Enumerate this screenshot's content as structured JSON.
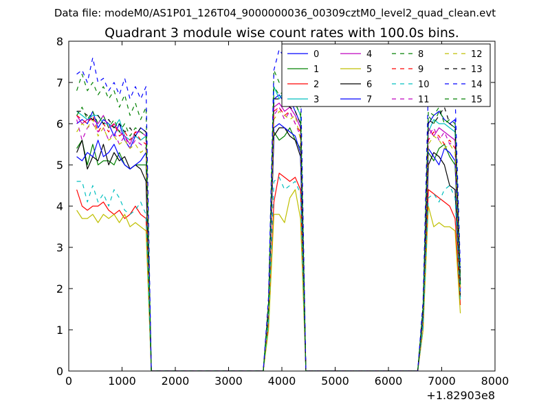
{
  "chart_data": {
    "type": "line",
    "suptitle": "Data file: modeM0/AS1P01_126T04_9000000036_00309cztM0_level2_quad_clean.evt",
    "title": "Quadrant 3 module wise count rates with 100.0s bins.",
    "xlabel": "",
    "ylabel": "",
    "x_offset_label": "+1.82903e8",
    "xlim": [
      0,
      8000
    ],
    "ylim": [
      0,
      8
    ],
    "xticks": [
      0,
      1000,
      2000,
      3000,
      4000,
      5000,
      6000,
      7000,
      8000
    ],
    "yticks": [
      0,
      1,
      2,
      3,
      4,
      5,
      6,
      7,
      8
    ],
    "grid": false,
    "legend_position": "top-right",
    "x": [
      150,
      250,
      350,
      450,
      550,
      650,
      750,
      850,
      950,
      1050,
      1150,
      1250,
      1350,
      1450,
      1550,
      1650,
      1750,
      1850,
      1950,
      2050,
      2150,
      2250,
      2350,
      2450,
      2550,
      2650,
      2750,
      2850,
      2950,
      3050,
      3150,
      3250,
      3350,
      3450,
      3550,
      3650,
      3750,
      3850,
      3950,
      4050,
      4150,
      4250,
      4350,
      4450,
      4550,
      4650,
      4750,
      4850,
      4950,
      5050,
      5150,
      5250,
      5350,
      5450,
      5550,
      5650,
      5750,
      5850,
      5950,
      6050,
      6150,
      6250,
      6350,
      6450,
      6550,
      6650,
      6750,
      6850,
      6950,
      7050,
      7150,
      7250,
      7350
    ],
    "series": [
      {
        "name": "0",
        "color": "#0000ff",
        "style": "solid",
        "values": [
          6.0,
          6.1,
          6.0,
          6.3,
          5.9,
          6.1,
          6.0,
          5.7,
          6.0,
          5.6,
          5.4,
          5.7,
          5.9,
          5.8,
          0,
          0,
          0,
          0,
          0,
          0,
          0,
          0,
          0,
          0,
          0,
          0,
          0,
          0,
          0,
          0,
          0,
          0,
          0,
          0,
          0,
          0,
          1.5,
          6.6,
          6.7,
          6.5,
          6.6,
          6.3,
          6.0,
          0,
          0,
          0,
          0,
          0,
          0,
          0,
          0,
          0,
          0,
          0,
          0,
          0,
          0,
          0,
          0,
          0,
          0,
          0,
          0,
          0,
          0,
          1.5,
          6.0,
          6.2,
          6.3,
          6.1,
          6.0,
          6.1,
          2.2
        ]
      },
      {
        "name": "1",
        "color": "#008000",
        "style": "solid",
        "values": [
          5.4,
          5.6,
          5.0,
          5.5,
          5.0,
          5.1,
          5.1,
          5.0,
          5.3,
          5.0,
          4.9,
          5.0,
          5.0,
          5.0,
          0,
          0,
          0,
          0,
          0,
          0,
          0,
          0,
          0,
          0,
          0,
          0,
          0,
          0,
          0,
          0,
          0,
          0,
          0,
          0,
          0,
          0,
          1.3,
          5.8,
          5.6,
          5.7,
          5.9,
          5.6,
          5.4,
          0,
          0,
          0,
          0,
          0,
          0,
          0,
          0,
          0,
          0,
          0,
          0,
          0,
          0,
          0,
          0,
          0,
          0,
          0,
          0,
          0,
          0,
          1.3,
          5.3,
          5.1,
          5.4,
          5.5,
          5.2,
          5.0,
          2.0
        ]
      },
      {
        "name": "2",
        "color": "#ff0000",
        "style": "solid",
        "values": [
          4.4,
          4.0,
          3.9,
          4.0,
          4.0,
          4.1,
          3.9,
          3.8,
          3.9,
          3.7,
          3.8,
          4.0,
          3.8,
          3.7,
          0,
          0,
          0,
          0,
          0,
          0,
          0,
          0,
          0,
          0,
          0,
          0,
          0,
          0,
          0,
          0,
          0,
          0,
          0,
          0,
          0,
          0,
          1.1,
          4.1,
          4.8,
          4.7,
          4.6,
          4.7,
          4.4,
          0,
          0,
          0,
          0,
          0,
          0,
          0,
          0,
          0,
          0,
          0,
          0,
          0,
          0,
          0,
          0,
          0,
          0,
          0,
          0,
          0,
          0,
          1.0,
          4.4,
          4.3,
          4.2,
          4.1,
          4.0,
          3.7,
          1.6
        ]
      },
      {
        "name": "3",
        "color": "#00bfbf",
        "style": "solid",
        "values": [
          6.3,
          6.2,
          6.1,
          6.2,
          6.2,
          6.0,
          6.0,
          5.9,
          6.1,
          5.7,
          5.6,
          5.7,
          5.6,
          5.7,
          0,
          0,
          0,
          0,
          0,
          0,
          0,
          0,
          0,
          0,
          0,
          0,
          0,
          0,
          0,
          0,
          0,
          0,
          0,
          0,
          0,
          0,
          1.6,
          6.9,
          6.6,
          6.8,
          6.6,
          6.5,
          6.2,
          0,
          0,
          0,
          0,
          0,
          0,
          0,
          0,
          0,
          0,
          0,
          0,
          0,
          0,
          0,
          0,
          0,
          0,
          0,
          0,
          0,
          0,
          1.5,
          5.8,
          6.1,
          6.0,
          6.0,
          5.9,
          5.8,
          2.1
        ]
      },
      {
        "name": "4",
        "color": "#bf00bf",
        "style": "solid",
        "values": [
          6.2,
          6.0,
          6.1,
          6.1,
          6.0,
          6.2,
          5.9,
          6.0,
          5.8,
          5.7,
          5.5,
          5.8,
          5.8,
          5.7,
          0,
          0,
          0,
          0,
          0,
          0,
          0,
          0,
          0,
          0,
          0,
          0,
          0,
          0,
          0,
          0,
          0,
          0,
          0,
          0,
          0,
          0,
          1.5,
          6.4,
          6.5,
          6.3,
          6.4,
          6.2,
          5.9,
          0,
          0,
          0,
          0,
          0,
          0,
          0,
          0,
          0,
          0,
          0,
          0,
          0,
          0,
          0,
          0,
          0,
          0,
          0,
          0,
          0,
          0,
          1.4,
          5.9,
          5.7,
          5.9,
          5.8,
          5.7,
          5.6,
          2.0
        ]
      },
      {
        "name": "5",
        "color": "#bfbf00",
        "style": "solid",
        "values": [
          3.9,
          3.7,
          3.7,
          3.8,
          3.6,
          3.8,
          3.7,
          3.8,
          3.6,
          3.8,
          3.5,
          3.6,
          3.5,
          3.4,
          0,
          0,
          0,
          0,
          0,
          0,
          0,
          0,
          0,
          0,
          0,
          0,
          0,
          0,
          0,
          0,
          0,
          0,
          0,
          0,
          0,
          0,
          1.0,
          3.8,
          3.8,
          3.6,
          4.2,
          4.4,
          3.7,
          0,
          0,
          0,
          0,
          0,
          0,
          0,
          0,
          0,
          0,
          0,
          0,
          0,
          0,
          0,
          0,
          0,
          0,
          0,
          0,
          0,
          0,
          1.0,
          4.0,
          3.5,
          3.6,
          3.5,
          3.5,
          3.4,
          1.4
        ]
      },
      {
        "name": "6",
        "color": "#000000",
        "style": "solid",
        "values": [
          5.3,
          5.6,
          4.9,
          5.2,
          5.1,
          5.5,
          5.0,
          5.3,
          5.1,
          5.2,
          4.9,
          5.0,
          4.9,
          4.6,
          0,
          0,
          0,
          0,
          0,
          0,
          0,
          0,
          0,
          0,
          0,
          0,
          0,
          0,
          0,
          0,
          0,
          0,
          0,
          0,
          0,
          0,
          1.4,
          5.7,
          5.9,
          5.9,
          5.7,
          5.6,
          5.2,
          0,
          0,
          0,
          0,
          0,
          0,
          0,
          0,
          0,
          0,
          0,
          0,
          0,
          0,
          0,
          0,
          0,
          0,
          0,
          0,
          0,
          0,
          1.3,
          5.0,
          5.3,
          5.2,
          5.0,
          4.5,
          4.4,
          1.8
        ]
      },
      {
        "name": "7",
        "color": "#0000ff",
        "style": "solid",
        "values": [
          5.2,
          5.1,
          5.3,
          5.2,
          5.6,
          5.2,
          5.3,
          5.5,
          5.2,
          5.0,
          4.9,
          5.0,
          5.1,
          5.3,
          0,
          0,
          0,
          0,
          0,
          0,
          0,
          0,
          0,
          0,
          0,
          0,
          0,
          0,
          0,
          0,
          0,
          0,
          0,
          0,
          0,
          0,
          1.4,
          5.9,
          6.0,
          5.9,
          5.8,
          5.7,
          5.3,
          0,
          0,
          0,
          0,
          0,
          0,
          0,
          0,
          0,
          0,
          0,
          0,
          0,
          0,
          0,
          0,
          0,
          0,
          0,
          0,
          0,
          0,
          1.3,
          5.4,
          5.2,
          5.0,
          5.4,
          5.3,
          5.1,
          1.9
        ]
      },
      {
        "name": "8",
        "color": "#008000",
        "style": "dashed",
        "values": [
          6.8,
          7.2,
          6.8,
          7.0,
          6.7,
          6.9,
          6.6,
          6.8,
          6.4,
          6.7,
          6.2,
          6.5,
          6.1,
          6.4,
          0,
          0,
          0,
          0,
          0,
          0,
          0,
          0,
          0,
          0,
          0,
          0,
          0,
          0,
          0,
          0,
          0,
          0,
          0,
          0,
          0,
          0,
          1.7,
          7.3,
          7.0,
          7.1,
          7.0,
          6.8,
          6.6,
          0,
          0,
          0,
          0,
          0,
          0,
          0,
          0,
          0,
          0,
          0,
          0,
          0,
          0,
          0,
          0,
          0,
          0,
          0,
          0,
          0,
          0,
          1.6,
          6.3,
          6.2,
          6.4,
          6.0,
          6.1,
          6.0,
          2.3
        ]
      },
      {
        "name": "9",
        "color": "#ff0000",
        "style": "dashed",
        "values": [
          6.2,
          6.1,
          6.0,
          6.2,
          5.8,
          6.0,
          5.8,
          6.0,
          5.7,
          5.8,
          5.6,
          5.8,
          5.6,
          5.5,
          0,
          0,
          0,
          0,
          0,
          0,
          0,
          0,
          0,
          0,
          0,
          0,
          0,
          0,
          0,
          0,
          0,
          0,
          0,
          0,
          0,
          0,
          1.5,
          6.3,
          6.4,
          6.2,
          6.3,
          6.0,
          5.8,
          0,
          0,
          0,
          0,
          0,
          0,
          0,
          0,
          0,
          0,
          0,
          0,
          0,
          0,
          0,
          0,
          0,
          0,
          0,
          0,
          0,
          0,
          1.4,
          5.6,
          5.8,
          5.7,
          5.5,
          5.6,
          5.4,
          2.0
        ]
      },
      {
        "name": "10",
        "color": "#00bfbf",
        "style": "dashed",
        "values": [
          4.6,
          4.6,
          4.1,
          4.5,
          4.1,
          4.3,
          4.0,
          4.4,
          4.2,
          3.9,
          3.8,
          3.9,
          4.1,
          3.8,
          0,
          0,
          0,
          0,
          0,
          0,
          0,
          0,
          0,
          0,
          0,
          0,
          0,
          0,
          0,
          0,
          0,
          0,
          0,
          0,
          0,
          0,
          1.2,
          4.6,
          4.7,
          4.4,
          4.5,
          4.6,
          4.3,
          0,
          0,
          0,
          0,
          0,
          0,
          0,
          0,
          0,
          0,
          0,
          0,
          0,
          0,
          0,
          0,
          0,
          0,
          0,
          0,
          0,
          0,
          1.1,
          4.2,
          4.3,
          4.1,
          4.4,
          4.5,
          4.2,
          1.7
        ]
      },
      {
        "name": "11",
        "color": "#bf00bf",
        "style": "dashed",
        "values": [
          6.1,
          5.6,
          5.9,
          6.0,
          5.8,
          5.9,
          5.6,
          5.8,
          5.5,
          5.7,
          5.4,
          5.6,
          5.5,
          5.4,
          0,
          0,
          0,
          0,
          0,
          0,
          0,
          0,
          0,
          0,
          0,
          0,
          0,
          0,
          0,
          0,
          0,
          0,
          0,
          0,
          0,
          0,
          1.5,
          6.2,
          6.4,
          6.1,
          6.3,
          6.0,
          5.7,
          0,
          0,
          0,
          0,
          0,
          0,
          0,
          0,
          0,
          0,
          0,
          0,
          0,
          0,
          0,
          0,
          0,
          0,
          0,
          0,
          0,
          0,
          1.4,
          5.7,
          5.9,
          5.6,
          5.8,
          5.5,
          5.6,
          2.0
        ]
      },
      {
        "name": "12",
        "color": "#bfbf00",
        "style": "dashed",
        "values": [
          5.8,
          6.0,
          5.9,
          6.1,
          5.7,
          5.9,
          5.6,
          5.7,
          5.5,
          5.6,
          5.4,
          5.5,
          5.3,
          5.4,
          0,
          0,
          0,
          0,
          0,
          0,
          0,
          0,
          0,
          0,
          0,
          0,
          0,
          0,
          0,
          0,
          0,
          0,
          0,
          0,
          0,
          0,
          1.5,
          6.1,
          6.3,
          6.2,
          6.1,
          6.2,
          5.6,
          0,
          0,
          0,
          0,
          0,
          0,
          0,
          0,
          0,
          0,
          0,
          0,
          0,
          0,
          0,
          0,
          0,
          0,
          0,
          0,
          0,
          0,
          1.4,
          5.5,
          5.7,
          5.6,
          5.4,
          5.5,
          5.3,
          1.9
        ]
      },
      {
        "name": "13",
        "color": "#000000",
        "style": "dashed",
        "values": [
          6.3,
          6.3,
          6.2,
          6.1,
          6.2,
          6.0,
          6.1,
          5.9,
          6.0,
          5.8,
          5.9,
          5.7,
          5.9,
          5.8,
          0,
          0,
          0,
          0,
          0,
          0,
          0,
          0,
          0,
          0,
          0,
          0,
          0,
          0,
          0,
          0,
          0,
          0,
          0,
          0,
          0,
          0,
          1.6,
          6.6,
          6.6,
          6.5,
          6.4,
          6.3,
          6.0,
          0,
          0,
          0,
          0,
          0,
          0,
          0,
          0,
          0,
          0,
          0,
          0,
          0,
          0,
          0,
          0,
          0,
          0,
          0,
          0,
          0,
          0,
          1.5,
          6.1,
          6.0,
          6.2,
          6.4,
          6.0,
          5.9,
          2.1
        ]
      },
      {
        "name": "14",
        "color": "#0000ff",
        "style": "dashed",
        "values": [
          7.2,
          7.3,
          7.0,
          7.6,
          7.0,
          7.1,
          6.8,
          7.0,
          6.7,
          7.1,
          6.6,
          6.9,
          6.6,
          6.9,
          0,
          0,
          0,
          0,
          0,
          0,
          0,
          0,
          0,
          0,
          0,
          0,
          0,
          0,
          0,
          0,
          0,
          0,
          0,
          0,
          0,
          0,
          1.8,
          7.3,
          7.8,
          7.6,
          7.6,
          7.4,
          7.2,
          0,
          0,
          0,
          0,
          0,
          0,
          0,
          0,
          0,
          0,
          0,
          0,
          0,
          0,
          0,
          0,
          0,
          0,
          0,
          0,
          0,
          0,
          1.7,
          6.9,
          7.0,
          6.7,
          6.8,
          6.6,
          6.7,
          2.5
        ]
      },
      {
        "name": "15",
        "color": "#008000",
        "style": "dashed",
        "values": [
          6.2,
          6.4,
          6.1,
          6.3,
          6.0,
          6.2,
          5.9,
          6.1,
          5.8,
          6.0,
          5.7,
          5.9,
          5.8,
          5.7,
          0,
          0,
          0,
          0,
          0,
          0,
          0,
          0,
          0,
          0,
          0,
          0,
          0,
          0,
          0,
          0,
          0,
          0,
          0,
          0,
          0,
          0,
          1.5,
          6.9,
          6.7,
          6.8,
          6.6,
          6.5,
          6.2,
          0,
          0,
          0,
          0,
          0,
          0,
          0,
          0,
          0,
          0,
          0,
          0,
          0,
          0,
          0,
          0,
          0,
          0,
          0,
          0,
          0,
          0,
          1.5,
          6.2,
          6.0,
          6.3,
          6.1,
          6.0,
          5.9,
          2.1
        ]
      }
    ]
  }
}
